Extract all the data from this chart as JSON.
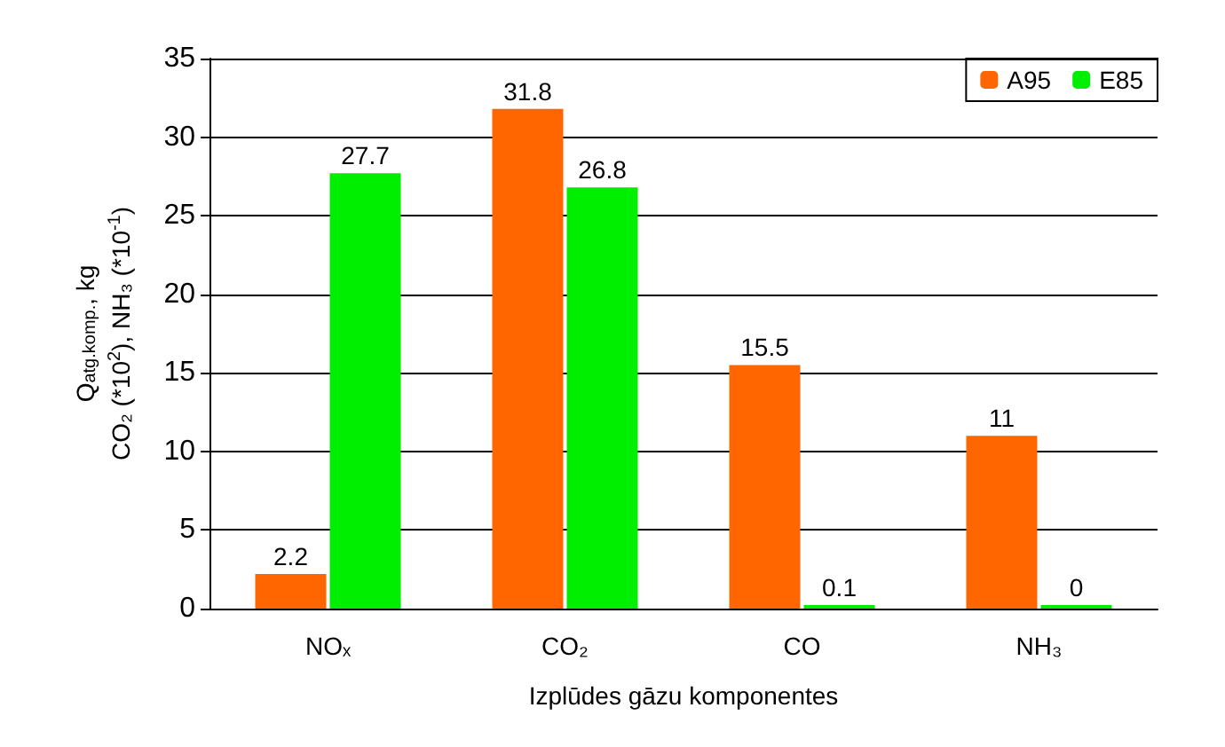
{
  "chart_data": {
    "type": "bar",
    "categories": [
      "NOₓ",
      "CO₂",
      "CO",
      "NH₃"
    ],
    "series": [
      {
        "name": "A95",
        "color": "#ff6600",
        "values": [
          2.2,
          31.8,
          15.5,
          11
        ]
      },
      {
        "name": "E85",
        "color": "#00ee00",
        "values": [
          27.7,
          26.8,
          0.1,
          0
        ]
      }
    ],
    "xlabel": "Izplūdes gāzu komponentes",
    "ylabel": "Q$_{atg.komp.}$, kg\nCO₂ (*10$^{2}$), NH₃ (*10$^{-1}$)",
    "ylim": [
      0,
      35
    ],
    "yticks": [
      0,
      5,
      10,
      15,
      20,
      25,
      30,
      35
    ],
    "grid": "y",
    "legend": "top right",
    "data_labels": true
  }
}
